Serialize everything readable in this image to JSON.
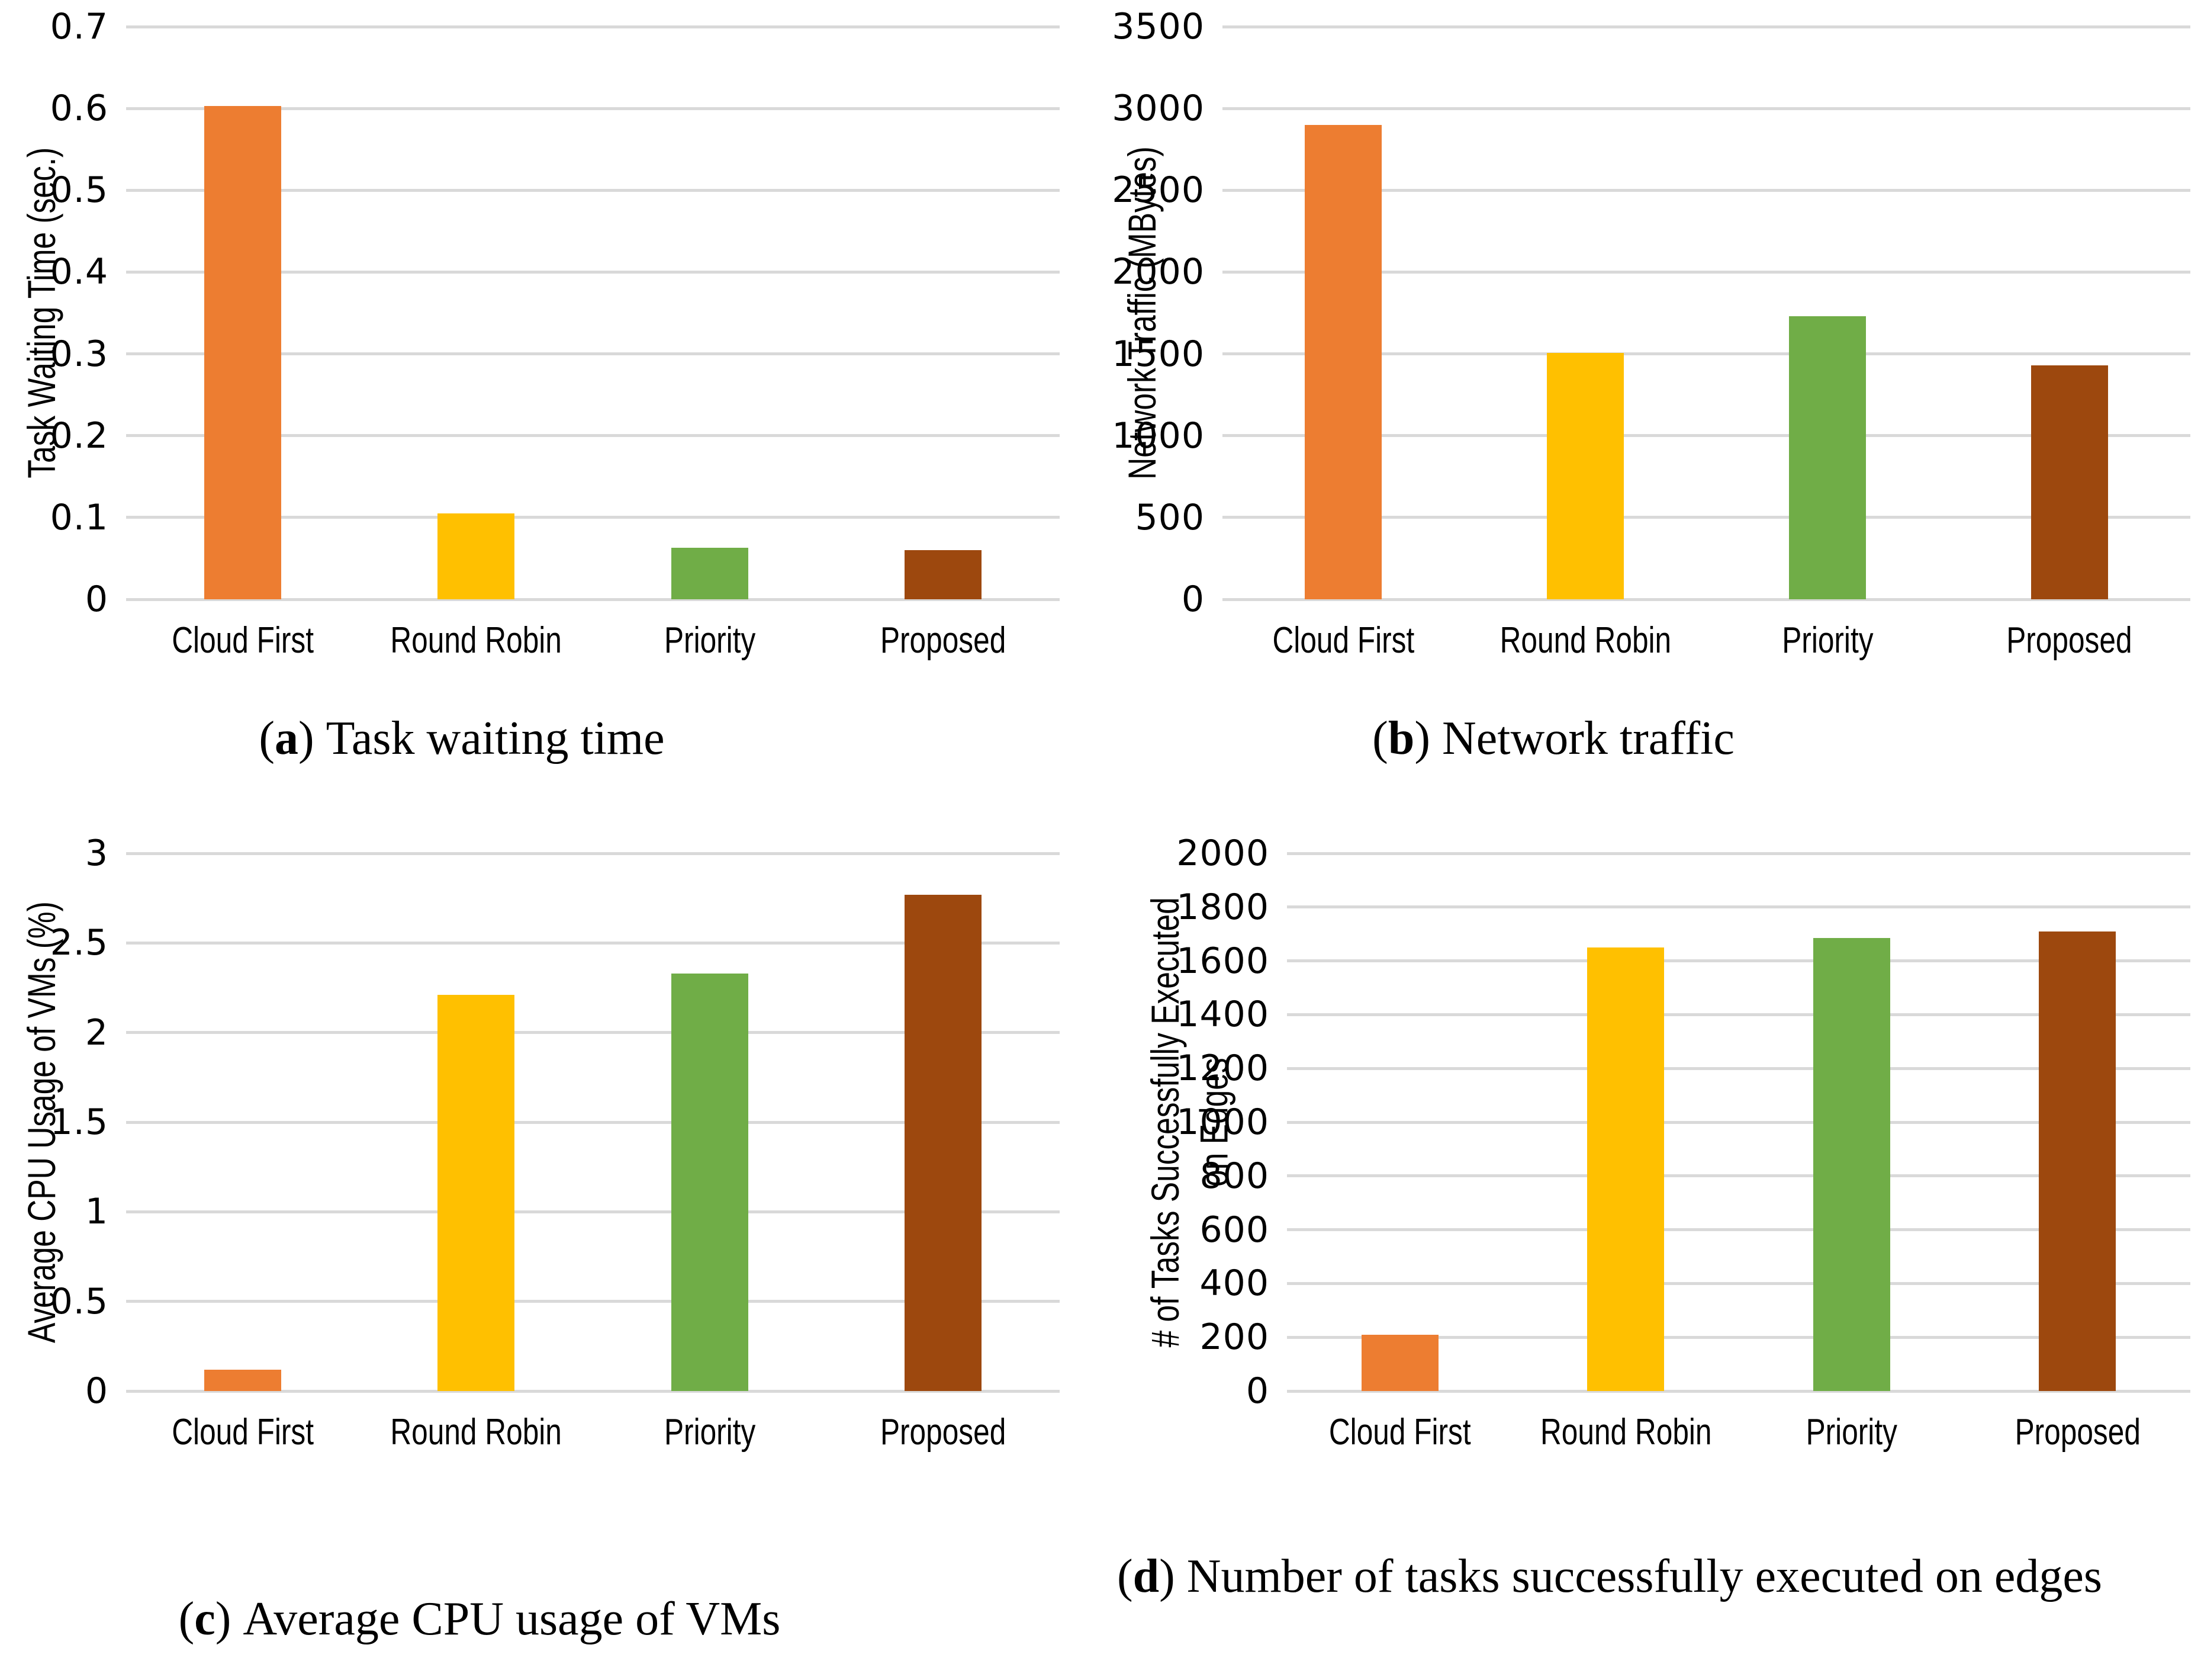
{
  "figure": {
    "background": "#ffffff",
    "panels": [
      "a",
      "b",
      "c",
      "d"
    ]
  },
  "bar_colors": [
    "#ED7D31",
    "#FFC000",
    "#70AD47",
    "#9D480E"
  ],
  "gridline_color": "#D9D9D9",
  "text_color": "#000000",
  "chart_data": [
    {
      "id": "a",
      "type": "bar",
      "title": "",
      "ylabel": "Task Waiting Time (sec.)",
      "ylabel_line2": "",
      "xlabel": "",
      "categories": [
        "Cloud First",
        "Round Robin",
        "Priority",
        "Proposed"
      ],
      "values": [
        0.603,
        0.105,
        0.063,
        0.06
      ],
      "ylim": [
        0,
        0.7
      ],
      "yticks": [
        0,
        0.1,
        0.2,
        0.3,
        0.4,
        0.5,
        0.6,
        0.7
      ],
      "ytick_labels": [
        "0",
        "0.1",
        "0.2",
        "0.3",
        "0.4",
        "0.5",
        "0.6",
        "0.7"
      ],
      "grid": true,
      "legend": "none",
      "caption_open": "(",
      "caption_letter": "a",
      "caption_close": ")",
      "caption_text": "Task waiting time"
    },
    {
      "id": "b",
      "type": "bar",
      "title": "",
      "ylabel": "Network Traffic (MBytes)",
      "ylabel_line2": "",
      "xlabel": "",
      "categories": [
        "Cloud First",
        "Round Robin",
        "Priority",
        "Proposed"
      ],
      "values": [
        2900,
        1505,
        1730,
        1430
      ],
      "ylim": [
        0,
        3500
      ],
      "yticks": [
        0,
        500,
        1000,
        1500,
        2000,
        2500,
        3000,
        3500
      ],
      "ytick_labels": [
        "0",
        "500",
        "1000",
        "1500",
        "2000",
        "2500",
        "3000",
        "3500"
      ],
      "grid": true,
      "legend": "none",
      "caption_open": "(",
      "caption_letter": "b",
      "caption_close": ")",
      "caption_text": "Network traffic"
    },
    {
      "id": "c",
      "type": "bar",
      "title": "",
      "ylabel": "Average CPU Usage of VMs (%)",
      "ylabel_line2": "",
      "xlabel": "",
      "categories": [
        "Cloud First",
        "Round Robin",
        "Priority",
        "Proposed"
      ],
      "values": [
        0.12,
        2.21,
        2.33,
        2.77
      ],
      "ylim": [
        0,
        3
      ],
      "yticks": [
        0,
        0.5,
        1,
        1.5,
        2,
        2.5,
        3
      ],
      "ytick_labels": [
        "0",
        "0.5",
        "1",
        "1.5",
        "2",
        "2.5",
        "3"
      ],
      "grid": true,
      "legend": "none",
      "caption_open": "(",
      "caption_letter": "c",
      "caption_close": ")",
      "caption_text": "Average CPU usage of VMs"
    },
    {
      "id": "d",
      "type": "bar",
      "title": "",
      "ylabel": "# of Tasks Successfully Executed",
      "ylabel_line2": "on Edges",
      "xlabel": "",
      "categories": [
        "Cloud First",
        "Round Robin",
        "Priority",
        "Proposed"
      ],
      "values": [
        210,
        1650,
        1685,
        1710
      ],
      "ylim": [
        0,
        2000
      ],
      "yticks": [
        0,
        200,
        400,
        600,
        800,
        1000,
        1200,
        1400,
        1600,
        1800,
        2000
      ],
      "ytick_labels": [
        "0",
        "200",
        "400",
        "600",
        "800",
        "1000",
        "1200",
        "1400",
        "1600",
        "1800",
        "2000"
      ],
      "grid": true,
      "legend": "none",
      "caption_open": "(",
      "caption_letter": "d",
      "caption_close": ")",
      "caption_text": "Number of tasks successfully executed on edges"
    }
  ]
}
